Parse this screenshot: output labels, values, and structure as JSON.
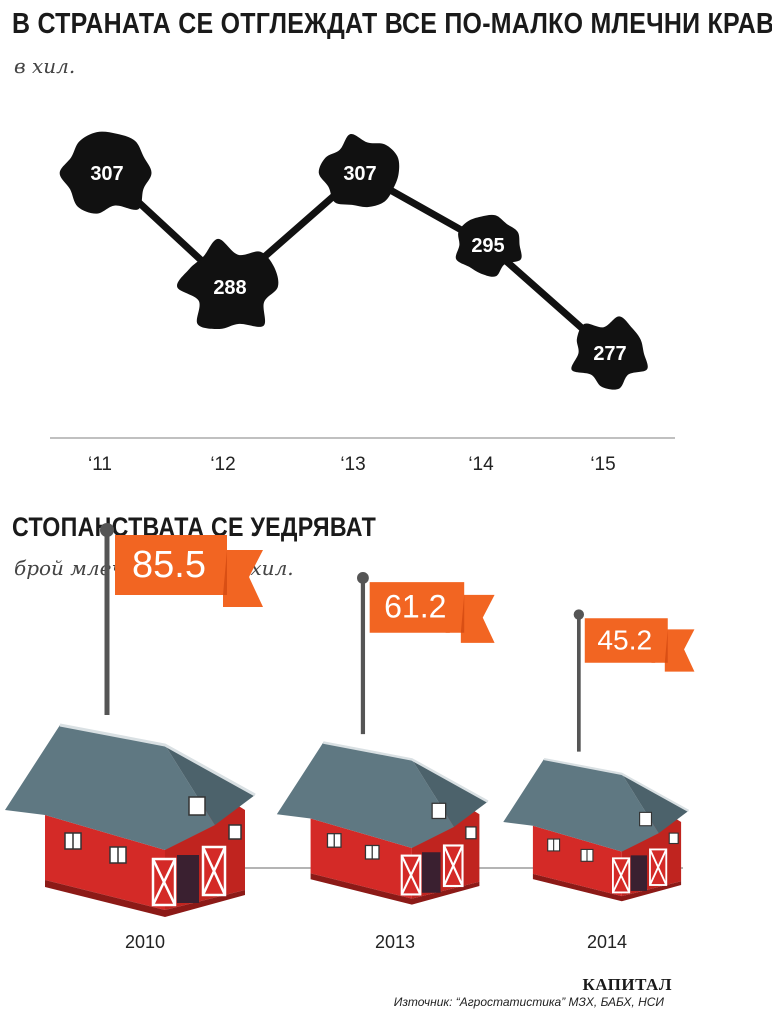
{
  "chart_title": "В СТРАНАТА СЕ ОТГЛЕЖДАТ ВСЕ ПО-МАЛКО МЛЕЧНИ КРАВИ",
  "chart_subtitle": "в хил.",
  "farms_title": "СТОПАНСТВАТА СЕ УЕДРЯВАТ",
  "farms_subtitle": "брой млечни ферми в хил.",
  "brand": "КАПИТАЛ",
  "source": "Източник: “Агростатистика” МЗХ, БАБХ, НСИ",
  "colors": {
    "blob": "#111111",
    "flag": "#f26522",
    "flag_dark": "#d94f14",
    "barn_wall": "#d42a27",
    "barn_roof": "#5f7882"
  },
  "chart_data": [
    {
      "type": "line",
      "title": "В СТРАНАТА СЕ ОТГЛЕЖДАТ ВСЕ ПО-МАЛКО МЛЕЧНИ КРАВИ",
      "subtitle": "в хил.",
      "categories": [
        "‘11",
        "‘12",
        "‘13",
        "‘14",
        "‘15"
      ],
      "values": [
        307,
        288,
        307,
        295,
        277
      ],
      "labels": [
        "307",
        "288",
        "307",
        "295",
        "277"
      ],
      "ylim": [
        265,
        315
      ]
    },
    {
      "type": "bar",
      "title": "СТОПАНСТВАТА СЕ УЕДРЯВАТ",
      "subtitle": "брой млечни ферми в хил.",
      "categories": [
        "2010",
        "2013",
        "2014"
      ],
      "values": [
        85.5,
        61.2,
        45.2
      ],
      "labels": [
        "85.5",
        "61.2",
        "45.2"
      ]
    }
  ]
}
